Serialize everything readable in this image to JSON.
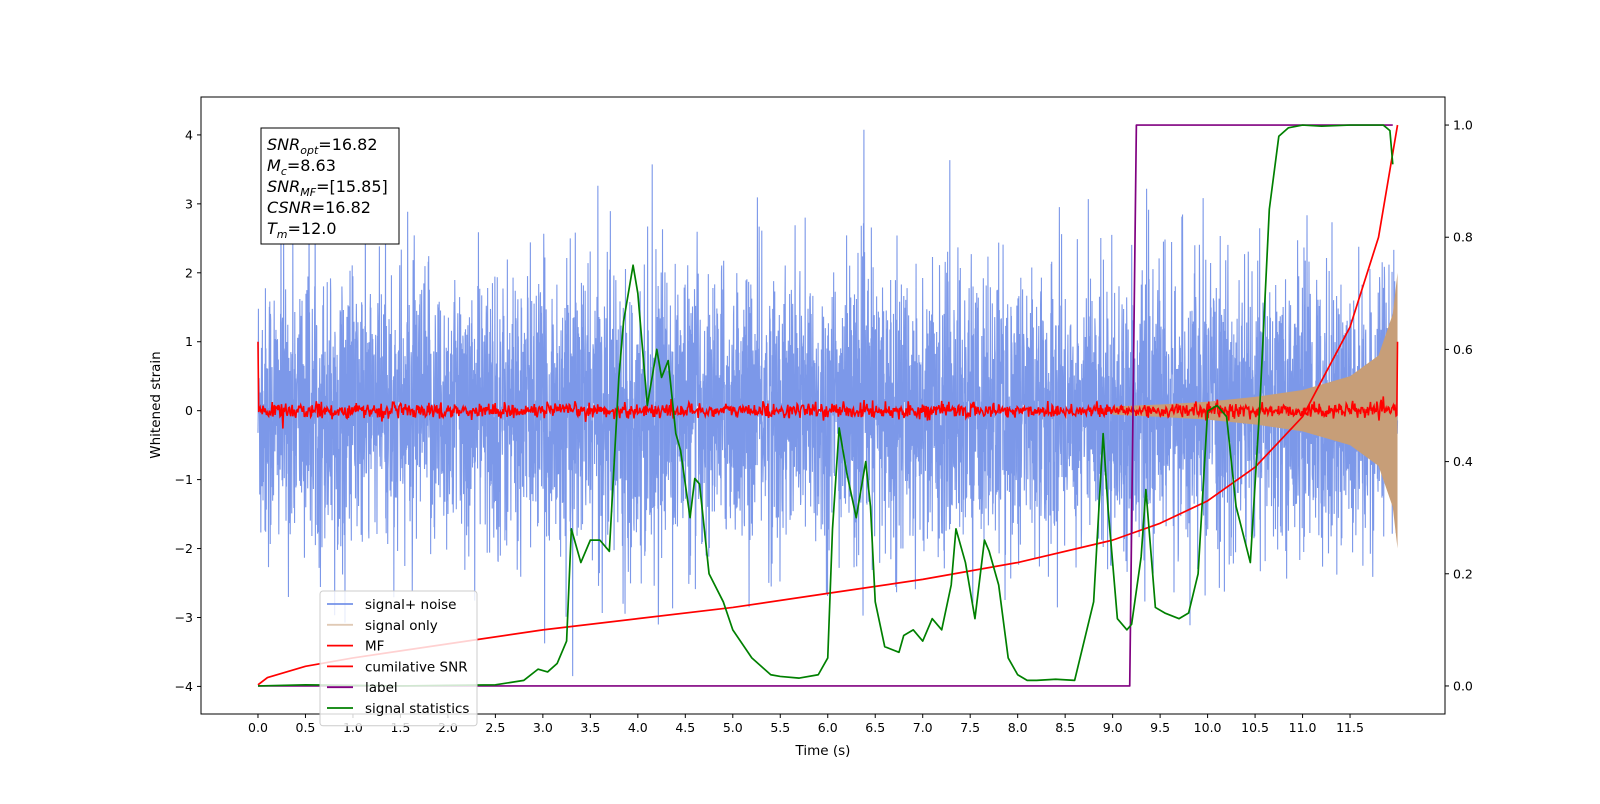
{
  "chart_data": {
    "type": "line",
    "xlabel": "Time (s)",
    "ylabel": "Whitened strain",
    "xlim": [
      -0.6,
      12.5
    ],
    "ylim": [
      -4.4,
      4.55
    ],
    "y2lim": [
      -0.05,
      1.05
    ],
    "x_ticks": [
      0.0,
      0.5,
      1.0,
      1.5,
      2.0,
      2.5,
      3.0,
      3.5,
      4.0,
      4.5,
      5.0,
      5.5,
      6.0,
      6.5,
      7.0,
      7.5,
      8.0,
      8.5,
      9.0,
      9.5,
      10.0,
      10.5,
      11.0,
      11.5
    ],
    "x_tick_labels": [
      "0.0",
      "0.5",
      "1.0",
      "1.5",
      "2.0",
      "2.5",
      "3.0",
      "3.5",
      "4.0",
      "4.5",
      "5.0",
      "5.5",
      "6.0",
      "6.5",
      "7.0",
      "7.5",
      "8.0",
      "8.5",
      "9.0",
      "9.5",
      "10.0",
      "10.5",
      "11.0",
      "11.5"
    ],
    "y_ticks": [
      -4,
      -3,
      -2,
      -1,
      0,
      1,
      2,
      3,
      4
    ],
    "y_tick_labels": [
      "−4",
      "−3",
      "−2",
      "−1",
      "0",
      "1",
      "2",
      "3",
      "4"
    ],
    "y2_ticks": [
      0.0,
      0.2,
      0.4,
      0.6,
      0.8,
      1.0
    ],
    "y2_tick_labels": [
      "0.0",
      "0.2",
      "0.4",
      "0.6",
      "0.8",
      "1.0"
    ],
    "grid": false,
    "legend_position": "lower-left",
    "annotation": {
      "lines": [
        {
          "base": "SNR",
          "sub": "opt",
          "rest": "=16.82"
        },
        {
          "base": "M",
          "sub": "c",
          "rest": "=8.63"
        },
        {
          "base": "SNR",
          "sub": "MF",
          "rest": "=[15.85]"
        },
        {
          "base": "CSNR",
          "sub": "",
          "rest": "=16.82"
        },
        {
          "base": "T",
          "sub": "m",
          "rest": "=12.0"
        }
      ]
    },
    "series": [
      {
        "name": "signal+ noise",
        "color": "#7592e8",
        "axis": "left",
        "kind": "noise_band",
        "duration": 12.0,
        "typical_amplitude": 1.0,
        "max_value": 4.1,
        "min_value": -3.85
      },
      {
        "name": "signal only",
        "color": "#c79e78",
        "axis": "left",
        "kind": "chirp_envelope",
        "x": [
          9.0,
          9.5,
          10.0,
          10.5,
          11.0,
          11.5,
          11.8,
          11.95,
          12.0
        ],
        "amplitude": [
          0.06,
          0.09,
          0.13,
          0.2,
          0.3,
          0.5,
          0.8,
          1.4,
          2.0
        ]
      },
      {
        "name": "MF",
        "color": "#ff0000",
        "axis": "left",
        "kind": "noisy_baseline",
        "start_value": 1.0,
        "end_value": 1.0,
        "baseline": 0.0,
        "jitter": 0.12
      },
      {
        "name": "cumilative SNR",
        "color": "#ff0000",
        "axis": "right",
        "x": [
          0.0,
          0.1,
          0.5,
          1.0,
          2.0,
          3.0,
          4.0,
          5.0,
          6.0,
          7.0,
          8.0,
          9.0,
          9.5,
          10.0,
          10.5,
          11.0,
          11.5,
          11.8,
          12.0
        ],
        "values": [
          0.002,
          0.015,
          0.035,
          0.05,
          0.075,
          0.1,
          0.12,
          0.14,
          0.165,
          0.19,
          0.22,
          0.26,
          0.29,
          0.33,
          0.39,
          0.48,
          0.64,
          0.8,
          1.0
        ]
      },
      {
        "name": "label",
        "color": "#800080",
        "axis": "right",
        "x": [
          0.0,
          9.18,
          9.25,
          11.95
        ],
        "values": [
          0.0,
          0.0,
          1.0,
          1.0
        ]
      },
      {
        "name": "signal statistics",
        "color": "#008000",
        "axis": "right",
        "x": [
          0.0,
          0.5,
          1.0,
          1.5,
          2.0,
          2.5,
          2.8,
          2.95,
          3.05,
          3.15,
          3.25,
          3.3,
          3.4,
          3.5,
          3.6,
          3.7,
          3.8,
          3.85,
          3.95,
          4.0,
          4.1,
          4.2,
          4.25,
          4.32,
          4.4,
          4.45,
          4.55,
          4.6,
          4.65,
          4.75,
          4.9,
          5.0,
          5.2,
          5.4,
          5.5,
          5.7,
          5.9,
          6.0,
          6.05,
          6.12,
          6.2,
          6.3,
          6.4,
          6.45,
          6.5,
          6.6,
          6.75,
          6.8,
          6.9,
          7.0,
          7.1,
          7.2,
          7.3,
          7.35,
          7.45,
          7.55,
          7.65,
          7.7,
          7.8,
          7.9,
          8.0,
          8.1,
          8.2,
          8.4,
          8.6,
          8.8,
          8.9,
          8.95,
          9.05,
          9.15,
          9.2,
          9.3,
          9.35,
          9.45,
          9.55,
          9.7,
          9.8,
          9.9,
          10.0,
          10.1,
          10.2,
          10.3,
          10.45,
          10.55,
          10.65,
          10.75,
          10.85,
          11.0,
          11.2,
          11.5,
          11.85,
          11.92,
          11.95
        ],
        "values": [
          0.0,
          0.002,
          0.001,
          0.0,
          0.001,
          0.002,
          0.01,
          0.03,
          0.025,
          0.04,
          0.08,
          0.28,
          0.22,
          0.26,
          0.26,
          0.24,
          0.55,
          0.65,
          0.75,
          0.7,
          0.5,
          0.6,
          0.55,
          0.58,
          0.45,
          0.42,
          0.3,
          0.37,
          0.36,
          0.2,
          0.15,
          0.1,
          0.05,
          0.02,
          0.017,
          0.014,
          0.02,
          0.05,
          0.28,
          0.46,
          0.38,
          0.3,
          0.4,
          0.32,
          0.15,
          0.07,
          0.06,
          0.09,
          0.1,
          0.08,
          0.12,
          0.1,
          0.18,
          0.28,
          0.22,
          0.12,
          0.26,
          0.24,
          0.18,
          0.05,
          0.02,
          0.01,
          0.01,
          0.012,
          0.01,
          0.15,
          0.45,
          0.32,
          0.12,
          0.1,
          0.11,
          0.23,
          0.35,
          0.14,
          0.13,
          0.12,
          0.13,
          0.2,
          0.49,
          0.5,
          0.48,
          0.32,
          0.22,
          0.5,
          0.85,
          0.98,
          0.995,
          1.0,
          0.998,
          1.0,
          1.0,
          0.99,
          0.93
        ]
      }
    ]
  }
}
